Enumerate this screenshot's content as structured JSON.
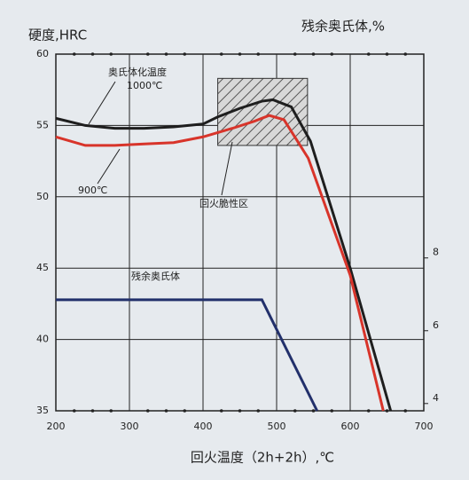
{
  "chart_data": {
    "type": "line",
    "y_title": "硬度,HRC",
    "y2_title": "残余奥氏体,%",
    "x_title": "回火温度（2h+2h）,℃",
    "xlim": [
      200,
      700
    ],
    "xticks": [
      200,
      300,
      400,
      500,
      600,
      700
    ],
    "ylim": [
      35,
      60
    ],
    "yticks": [
      35,
      40,
      45,
      50,
      55,
      60
    ],
    "y2lim": [
      3.8,
      13.6
    ],
    "y2ticks": [
      4,
      6,
      8
    ],
    "grid": true,
    "series": [
      {
        "name": "1000℃",
        "color": "#1e1e1e",
        "x": [
          200,
          240,
          280,
          320,
          360,
          400,
          420,
          450,
          480,
          495,
          520,
          546,
          600,
          655
        ],
        "values": [
          55.5,
          55.0,
          54.8,
          54.8,
          54.9,
          55.1,
          55.6,
          56.2,
          56.7,
          56.8,
          56.3,
          53.9,
          45.0,
          35
        ]
      },
      {
        "name": "900℃",
        "color": "#d8342a",
        "x": [
          200,
          240,
          280,
          320,
          360,
          400,
          440,
          470,
          490,
          510,
          543,
          600,
          645
        ],
        "values": [
          54.2,
          53.6,
          53.6,
          53.7,
          53.8,
          54.2,
          54.8,
          55.3,
          55.7,
          55.4,
          52.7,
          44.5,
          35
        ]
      },
      {
        "name": "残余奥氏体",
        "color": "#22306b",
        "axis": "y2",
        "x": [
          200,
          480,
          555
        ],
        "values": [
          6.85,
          6.85,
          3.8
        ]
      }
    ],
    "annotation": "奥氏体化温度",
    "region": {
      "label": "回火脆性区",
      "xlim": [
        420,
        542
      ],
      "ylim": [
        53.6,
        58.3
      ]
    }
  }
}
